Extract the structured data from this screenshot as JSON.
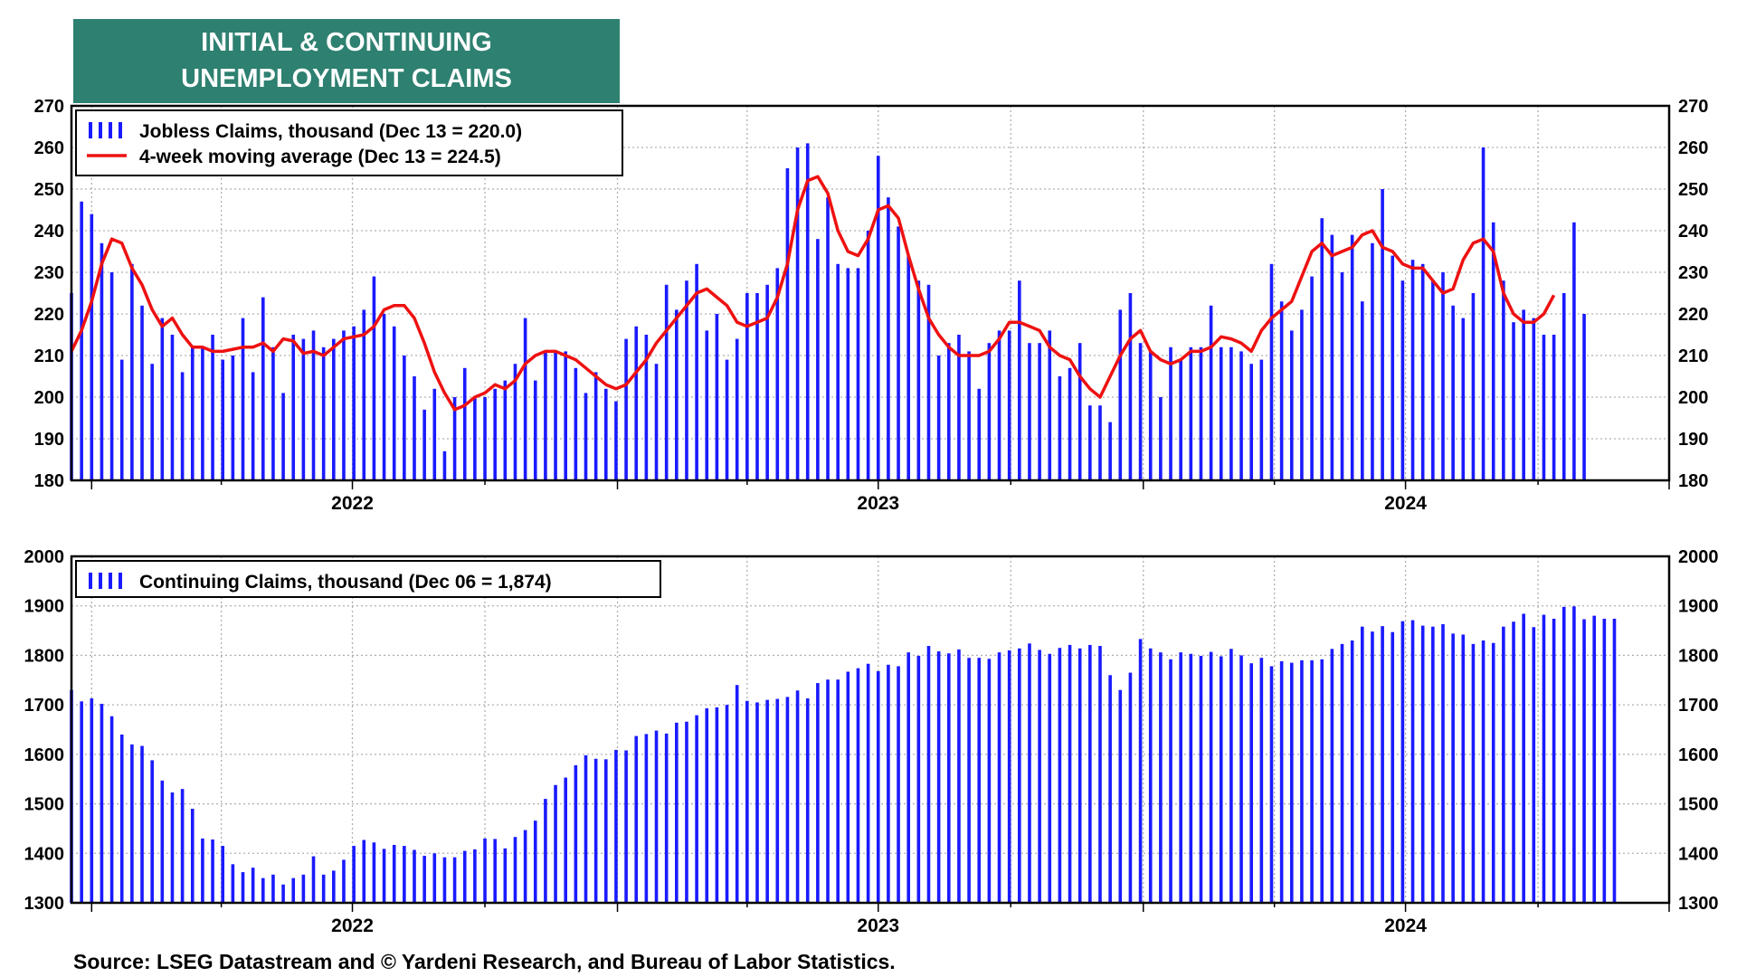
{
  "title_lines": [
    "INITIAL & CONTINUING",
    "UNEMPLOYMENT CLAIMS"
  ],
  "source": "Source: LSEG Datastream and © Yardeni Research, and Bureau of Labor Statistics.",
  "colors": {
    "bars": "#1a1aff",
    "moving_average": "#ee1111",
    "title_bg": "#2e8070",
    "grid": "#b0b0b0"
  },
  "chart_data": [
    {
      "type": "bar",
      "frequency": "weekly",
      "x_start": "2021-12-18",
      "x_range": [
        "2021-12-18",
        "2024-12-31"
      ],
      "year_labels": [
        "2022",
        "2023",
        "2024"
      ],
      "ylim": [
        180,
        270
      ],
      "yticks": [
        180,
        190,
        200,
        210,
        220,
        230,
        240,
        250,
        260,
        270
      ],
      "grid": true,
      "legend_position": "top-left",
      "series": [
        {
          "name": "Jobless Claims, thousand (Dec 13 = 220.0)",
          "type": "bar",
          "values": [
            225,
            247,
            244,
            237,
            230,
            209,
            232,
            222,
            208,
            219,
            215,
            206,
            212,
            212,
            215,
            209,
            210,
            219,
            206,
            224,
            212,
            201,
            215,
            214,
            216,
            212,
            214,
            216,
            217,
            221,
            229,
            220,
            217,
            210,
            205,
            197,
            202,
            187,
            200,
            207,
            200,
            200,
            202,
            204,
            208,
            219,
            204,
            211,
            211,
            211,
            207,
            201,
            206,
            202,
            199,
            214,
            217,
            215,
            208,
            227,
            221,
            228,
            232,
            216,
            220,
            209,
            214,
            225,
            225,
            227,
            231,
            255,
            260,
            261,
            238,
            248,
            232,
            231,
            231,
            240,
            258,
            248,
            241,
            234,
            228,
            227,
            210,
            213,
            215,
            211,
            202,
            213,
            216,
            216,
            228,
            213,
            213,
            216,
            205,
            207,
            213,
            198,
            198,
            194,
            221,
            225,
            213,
            211,
            200,
            212,
            209,
            212,
            212,
            222,
            212,
            212,
            211,
            208,
            209,
            232,
            223,
            216,
            221,
            229,
            243,
            239,
            230,
            239,
            223,
            237,
            250,
            234,
            228,
            233,
            232,
            228,
            230,
            222,
            219,
            225,
            260,
            242,
            228,
            218,
            221,
            219,
            215,
            215,
            225,
            242,
            220
          ]
        },
        {
          "name": "4-week moving average (Dec 13 = 224.5)",
          "type": "line",
          "values": [
            211,
            216,
            223,
            232,
            238,
            237,
            231,
            227,
            221,
            217,
            219,
            215,
            212,
            212,
            211,
            211,
            211.5,
            212,
            212,
            213,
            211,
            214,
            213.5,
            210.5,
            211,
            210,
            212,
            214,
            214.5,
            215,
            217,
            221,
            222,
            222,
            219,
            213,
            206,
            201,
            197,
            198,
            200,
            201,
            203,
            202,
            204,
            208,
            210,
            211,
            211,
            210,
            209,
            207,
            205,
            203,
            202,
            203,
            206,
            209,
            213,
            216,
            219,
            222,
            225,
            226,
            224,
            222,
            218,
            217,
            218,
            219,
            224,
            232,
            245,
            252,
            253,
            249,
            240,
            235,
            234,
            238,
            245,
            246,
            243,
            234,
            226,
            219,
            215,
            212,
            210,
            210,
            210,
            211,
            214,
            218,
            218,
            217,
            216,
            212,
            210,
            209,
            205,
            202,
            200,
            205,
            210,
            214,
            216,
            211,
            209,
            208,
            209,
            211,
            211,
            212,
            214.5,
            214,
            213,
            211,
            216,
            219,
            221,
            223,
            229,
            235,
            237,
            234,
            235,
            236,
            239,
            240,
            236,
            235,
            232,
            231,
            231,
            228,
            225,
            226,
            233,
            237,
            238,
            235,
            225,
            220,
            218,
            218,
            220,
            224.5
          ]
        }
      ]
    },
    {
      "type": "bar",
      "frequency": "weekly",
      "x_start": "2021-12-18",
      "x_range": [
        "2021-12-18",
        "2024-12-31"
      ],
      "year_labels": [
        "2022",
        "2023",
        "2024"
      ],
      "ylim": [
        1300,
        2000
      ],
      "yticks": [
        1300,
        1400,
        1500,
        1600,
        1700,
        1800,
        1900,
        2000
      ],
      "grid": true,
      "legend_position": "top-left",
      "series": [
        {
          "name": "Continuing Claims, thousand (Dec 06 = 1,874)",
          "type": "bar",
          "values": [
            1730,
            1707,
            1713,
            1702,
            1677,
            1640,
            1620,
            1617,
            1588,
            1547,
            1523,
            1530,
            1490,
            1430,
            1428,
            1415,
            1378,
            1362,
            1371,
            1350,
            1357,
            1337,
            1350,
            1357,
            1394,
            1357,
            1365,
            1387,
            1415,
            1427,
            1422,
            1409,
            1417,
            1415,
            1407,
            1395,
            1400,
            1392,
            1392,
            1405,
            1408,
            1430,
            1429,
            1410,
            1433,
            1447,
            1466,
            1510,
            1538,
            1553,
            1578,
            1598,
            1591,
            1590,
            1609,
            1608,
            1637,
            1641,
            1648,
            1642,
            1664,
            1666,
            1679,
            1693,
            1695,
            1700,
            1740,
            1708,
            1705,
            1710,
            1712,
            1716,
            1729,
            1713,
            1744,
            1751,
            1751,
            1767,
            1774,
            1783,
            1768,
            1781,
            1778,
            1806,
            1799,
            1819,
            1808,
            1804,
            1812,
            1795,
            1795,
            1793,
            1806,
            1810,
            1814,
            1824,
            1811,
            1803,
            1815,
            1821,
            1814,
            1821,
            1819,
            1760,
            1730,
            1765,
            1833,
            1814,
            1806,
            1792,
            1806,
            1803,
            1799,
            1807,
            1798,
            1813,
            1800,
            1784,
            1795,
            1778,
            1788,
            1785,
            1790,
            1790,
            1792,
            1813,
            1823,
            1830,
            1858,
            1848,
            1859,
            1847,
            1869,
            1871,
            1860,
            1858,
            1863,
            1844,
            1842,
            1823,
            1830,
            1825,
            1858,
            1868,
            1884,
            1857,
            1882,
            1874,
            1898,
            1899,
            1873,
            1880,
            1874,
            1874
          ]
        }
      ]
    }
  ]
}
